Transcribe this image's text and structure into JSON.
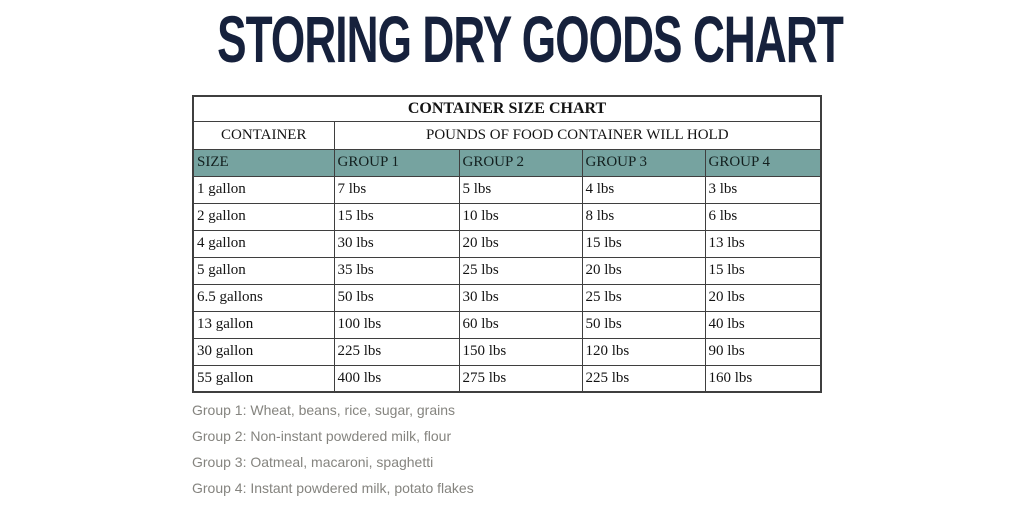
{
  "page_title": "STORING DRY GOODS CHART",
  "chart_data": {
    "type": "table",
    "table_title": "CONTAINER SIZE CHART",
    "container_label": "CONTAINER",
    "pounds_label": "POUNDS OF FOOD CONTAINER WILL HOLD",
    "column_headers": [
      "SIZE",
      "GROUP 1",
      "GROUP 2",
      "GROUP 3",
      "GROUP 4"
    ],
    "rows": [
      [
        "1 gallon",
        "7 lbs",
        "5 lbs",
        "4 lbs",
        "3 lbs"
      ],
      [
        "2 gallon",
        "15 lbs",
        "10 lbs",
        "8 lbs",
        "6 lbs"
      ],
      [
        "4 gallon",
        "30 lbs",
        "20 lbs",
        "15 lbs",
        "13 lbs"
      ],
      [
        "5 gallon",
        "35 lbs",
        "25 lbs",
        "20 lbs",
        "15 lbs"
      ],
      [
        "6.5 gallons",
        "50 lbs",
        "30 lbs",
        "25 lbs",
        "20 lbs"
      ],
      [
        "13 gallon",
        "100 lbs",
        "60 lbs",
        "50 lbs",
        "40 lbs"
      ],
      [
        "30 gallon",
        "225 lbs",
        "150 lbs",
        "120 lbs",
        "90 lbs"
      ],
      [
        "55 gallon",
        "400 lbs",
        "275 lbs",
        "225 lbs",
        "160 lbs"
      ]
    ]
  },
  "footnotes": [
    "Group 1: Wheat, beans, rice, sugar, grains",
    "Group 2: Non-instant powdered milk, flour",
    "Group 3: Oatmeal, macaroni, spaghetti",
    "Group 4: Instant powdered milk, potato flakes"
  ],
  "colors": {
    "title_navy": "#16213c",
    "header_teal": "#76a3a0",
    "table_border": "#3f3f3f",
    "footnote_gray": "#85847f"
  }
}
